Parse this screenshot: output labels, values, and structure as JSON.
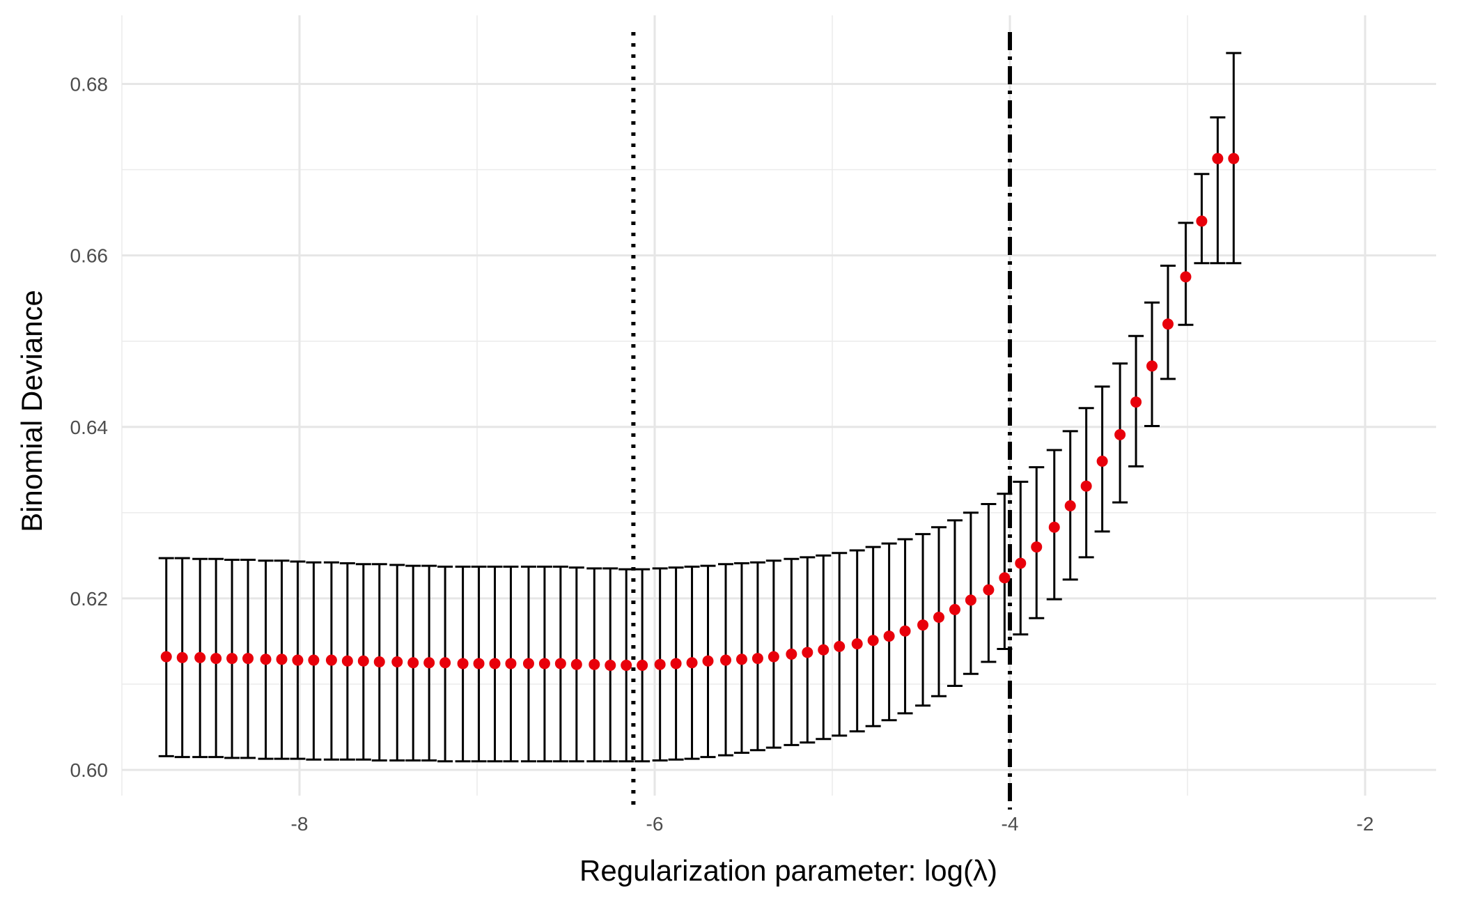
{
  "chart_data": {
    "type": "scatter",
    "title": "",
    "xlabel": "Regularization parameter: log(λ)",
    "ylabel": "Binomial Deviance",
    "xlim": [
      -9.0,
      -1.6
    ],
    "ylim": [
      0.597,
      0.688
    ],
    "x_ticks": [
      -8,
      -6,
      -4,
      -2
    ],
    "x_tick_labels": [
      "-8",
      "-6",
      "-4",
      "-2"
    ],
    "x_minor_ticks": [
      -9,
      -7,
      -5,
      -3
    ],
    "y_ticks": [
      0.6,
      0.62,
      0.64,
      0.66,
      0.68
    ],
    "y_tick_labels": [
      "0.60",
      "0.62",
      "0.64",
      "0.66",
      "0.68"
    ],
    "y_minor_ticks": [
      0.61,
      0.63,
      0.65,
      0.67
    ],
    "grid": true,
    "legend": "none",
    "point_color": "#e8000b",
    "errorbar_color": "#000000",
    "reference_lines": [
      {
        "x": -6.12,
        "style": "dotted",
        "color": "#000000"
      },
      {
        "x": -4.0,
        "style": "dashdot",
        "color": "#000000"
      }
    ],
    "series": [
      {
        "x": [
          -8.75,
          -8.66,
          -8.56,
          -8.47,
          -8.38,
          -8.29,
          -8.19,
          -8.1,
          -8.01,
          -7.92,
          -7.82,
          -7.73,
          -7.64,
          -7.55,
          -7.45,
          -7.36,
          -7.27,
          -7.18,
          -7.08,
          -6.99,
          -6.9,
          -6.81,
          -6.71,
          -6.62,
          -6.53,
          -6.44,
          -6.34,
          -6.25,
          -6.16,
          -6.07,
          -5.97,
          -5.88,
          -5.79,
          -5.7,
          -5.6,
          -5.51,
          -5.42,
          -5.33,
          -5.23,
          -5.14,
          -5.05,
          -4.96,
          -4.86,
          -4.77,
          -4.68,
          -4.59,
          -4.49,
          -4.4,
          -4.31,
          -4.22,
          -4.12,
          -4.03,
          -3.94,
          -3.85,
          -3.75,
          -3.66,
          -3.57,
          -3.48,
          -3.38,
          -3.29,
          -3.2,
          -3.11,
          -3.01,
          -2.92,
          -2.83,
          -2.74
        ],
        "y": [
          0.6132,
          0.6131,
          0.6131,
          0.613,
          0.613,
          0.613,
          0.6129,
          0.6129,
          0.6128,
          0.6128,
          0.6128,
          0.6127,
          0.6127,
          0.6126,
          0.6126,
          0.6125,
          0.6125,
          0.6125,
          0.6124,
          0.6124,
          0.6124,
          0.6124,
          0.6124,
          0.6124,
          0.6124,
          0.6123,
          0.6123,
          0.6122,
          0.6122,
          0.6122,
          0.6123,
          0.6124,
          0.6125,
          0.6127,
          0.6128,
          0.6129,
          0.613,
          0.6132,
          0.6135,
          0.6137,
          0.614,
          0.6144,
          0.6147,
          0.6151,
          0.6156,
          0.6162,
          0.6169,
          0.6178,
          0.6187,
          0.6198,
          0.621,
          0.6224,
          0.6241,
          0.626,
          0.6283,
          0.6308,
          0.6331,
          0.636,
          0.6391,
          0.6429,
          0.6471,
          0.652,
          0.6575,
          0.664,
          0.6713,
          0.6713
        ],
        "y_low": [
          0.6016,
          0.6015,
          0.6015,
          0.6015,
          0.6014,
          0.6014,
          0.6013,
          0.6013,
          0.6013,
          0.6012,
          0.6012,
          0.6012,
          0.6012,
          0.6011,
          0.6011,
          0.6011,
          0.6011,
          0.601,
          0.601,
          0.601,
          0.601,
          0.601,
          0.601,
          0.601,
          0.601,
          0.601,
          0.601,
          0.601,
          0.601,
          0.601,
          0.6011,
          0.6012,
          0.6013,
          0.6015,
          0.6017,
          0.602,
          0.6023,
          0.6026,
          0.6029,
          0.6032,
          0.6036,
          0.604,
          0.6045,
          0.6051,
          0.6058,
          0.6066,
          0.6075,
          0.6086,
          0.6098,
          0.6112,
          0.6126,
          0.6141,
          0.6158,
          0.6177,
          0.6199,
          0.6222,
          0.6248,
          0.6278,
          0.6312,
          0.6354,
          0.6401,
          0.6456,
          0.6519,
          0.6591,
          0.6591,
          0.6591
        ],
        "y_high": [
          0.6247,
          0.6247,
          0.6246,
          0.6246,
          0.6245,
          0.6245,
          0.6244,
          0.6244,
          0.6243,
          0.6242,
          0.6242,
          0.6241,
          0.624,
          0.624,
          0.6239,
          0.6238,
          0.6238,
          0.6237,
          0.6237,
          0.6237,
          0.6237,
          0.6237,
          0.6237,
          0.6237,
          0.6237,
          0.6236,
          0.6235,
          0.6235,
          0.6234,
          0.6234,
          0.6235,
          0.6236,
          0.6237,
          0.6238,
          0.624,
          0.6241,
          0.6242,
          0.6244,
          0.6246,
          0.6248,
          0.625,
          0.6253,
          0.6256,
          0.626,
          0.6264,
          0.6269,
          0.6275,
          0.6283,
          0.6291,
          0.63,
          0.631,
          0.6322,
          0.6336,
          0.6353,
          0.6373,
          0.6395,
          0.6422,
          0.6447,
          0.6474,
          0.6506,
          0.6545,
          0.6588,
          0.6638,
          0.6695,
          0.6761,
          0.6836
        ]
      }
    ]
  }
}
